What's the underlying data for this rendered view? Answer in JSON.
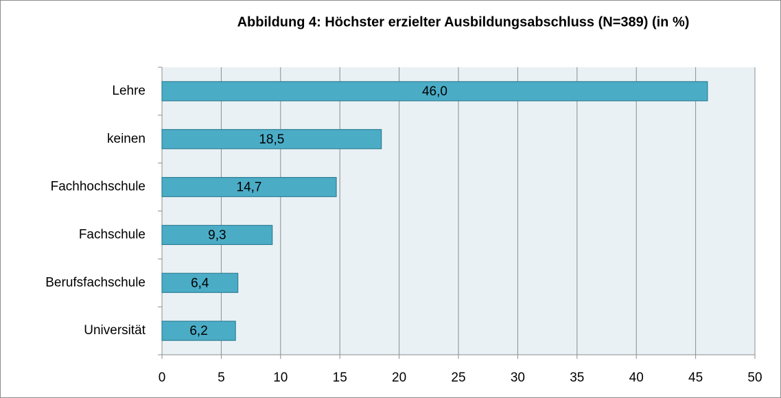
{
  "chart_data": {
    "type": "barh",
    "title": "Abbildung  4: Höchster erzielter Ausbildungsabschluss (N=389) (in %)",
    "categories": [
      "Lehre",
      "keinen",
      "Fachhochschule",
      "Fachschule",
      "Berufsfachschule",
      "Universität"
    ],
    "values": [
      46.0,
      18.5,
      14.7,
      9.3,
      6.4,
      6.2
    ],
    "value_labels": [
      "46,0",
      "18,5",
      "14,7",
      "9,3",
      "6,4",
      "6,2"
    ],
    "color": "#4bacc6",
    "xlim": [
      0,
      50
    ],
    "xticks": [
      0,
      5,
      10,
      15,
      20,
      25,
      30,
      35,
      40,
      45,
      50
    ],
    "grid": true
  }
}
